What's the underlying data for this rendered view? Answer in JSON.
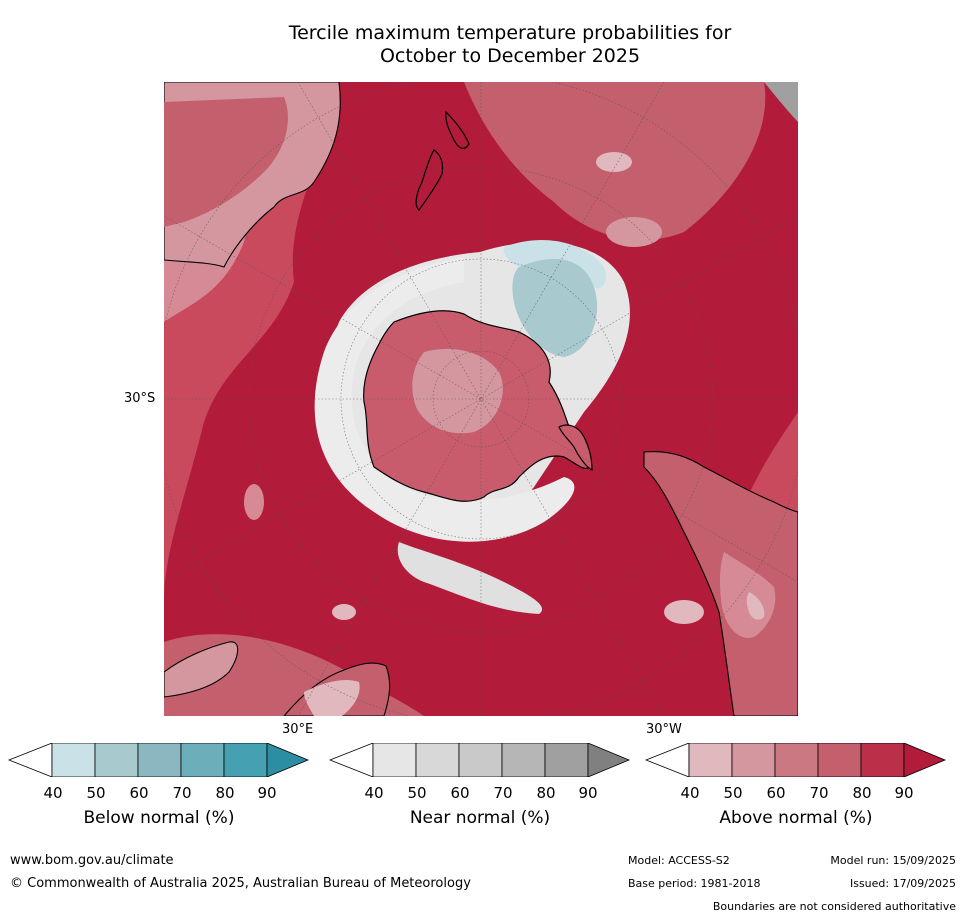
{
  "title_line1": "Tercile maximum temperature probabilities for",
  "title_line2": "October to December 2025",
  "axis_labels": {
    "lat_30s": "30°S",
    "lon_30e": "30°E",
    "lon_30w": "30°W"
  },
  "colorbars": [
    {
      "label": "Below normal (%)",
      "ticks": [
        "40",
        "50",
        "60",
        "70",
        "80",
        "90"
      ],
      "colors": [
        "#ffffff",
        "#c9e1e7",
        "#a8c9ce",
        "#8bb8c0",
        "#6daebb",
        "#45a1b1",
        "#2c8da3"
      ]
    },
    {
      "label": "Near normal (%)",
      "ticks": [
        "40",
        "50",
        "60",
        "70",
        "80",
        "90"
      ],
      "colors": [
        "#ffffff",
        "#e6e6e6",
        "#d8d8d8",
        "#c9c9c9",
        "#b6b6b6",
        "#a0a0a0",
        "#808080"
      ]
    },
    {
      "label": "Above normal (%)",
      "ticks": [
        "40",
        "50",
        "60",
        "70",
        "80",
        "90"
      ],
      "colors": [
        "#ffffff",
        "#e0b8bd",
        "#d4979f",
        "#cb7883",
        "#c45f6d",
        "#bb3049",
        "#b31b3a"
      ]
    }
  ],
  "footer": {
    "website": "www.bom.gov.au/climate",
    "copyright": "© Commonwealth of Australia 2025, Australian Bureau of Meteorology",
    "model": "Model: ACCESS-S2",
    "model_run": "Model run: 15/09/2025",
    "base_period": "Base period: 1981-2018",
    "issued": "Issued: 17/09/2025",
    "disclaimer": "Boundaries are not considered authoritative"
  }
}
